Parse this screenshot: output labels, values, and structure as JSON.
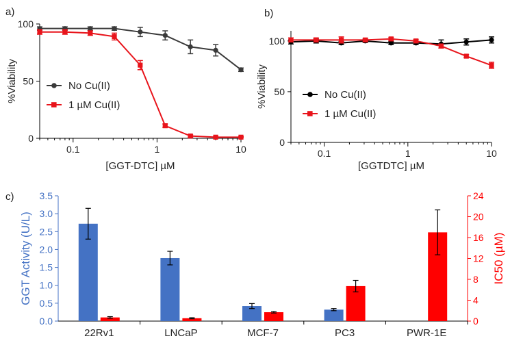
{
  "chart_data": [
    {
      "id": "a",
      "panel_label": "a)",
      "type": "line",
      "xscale": "log",
      "xlabel": "[GGT-DTC] µM",
      "ylabel": "%Viability",
      "xlim": [
        0.04,
        10
      ],
      "ylim": [
        0,
        100
      ],
      "xticks": [
        0.1,
        1,
        10
      ],
      "xtick_labels": [
        "0.1",
        "1",
        "10"
      ],
      "yticks": [
        0,
        50,
        100
      ],
      "ytick_labels": [
        "0",
        "50",
        "100"
      ],
      "legend_position": "left-middle",
      "series": [
        {
          "name": "No Cu(II)",
          "color": "#3a3a3a",
          "marker": "circle",
          "x": [
            0.04,
            0.08,
            0.16,
            0.31,
            0.63,
            1.25,
            2.5,
            5,
            10
          ],
          "y": [
            96,
            96,
            96,
            96,
            93,
            90,
            80,
            77,
            60
          ],
          "err": [
            1.5,
            1.5,
            1.5,
            1.5,
            4,
            4,
            6,
            5,
            1.5
          ]
        },
        {
          "name": "1 µM Cu(II)",
          "color": "#e8141b",
          "marker": "square",
          "x": [
            0.04,
            0.08,
            0.16,
            0.31,
            0.63,
            1.25,
            2.5,
            5,
            10
          ],
          "y": [
            93,
            93,
            92,
            89,
            64,
            11,
            2,
            1,
            1
          ],
          "err": [
            2,
            2,
            2,
            3,
            4,
            1.5,
            1,
            0.5,
            0.5
          ]
        }
      ]
    },
    {
      "id": "b",
      "panel_label": "b)",
      "type": "line",
      "xscale": "log",
      "xlabel": "[GGTDTC] µM",
      "ylabel": "%Viability",
      "xlim": [
        0.04,
        10
      ],
      "ylim": [
        0,
        110
      ],
      "xticks": [
        0.1,
        1,
        10
      ],
      "xtick_labels": [
        "0.1",
        "1",
        "10"
      ],
      "yticks": [
        0,
        50,
        100
      ],
      "ytick_labels": [
        "0",
        "50",
        "100"
      ],
      "legend_position": "lower-left",
      "series": [
        {
          "name": "No Cu(II)",
          "color": "#000000",
          "marker": "circle",
          "x": [
            0.04,
            0.08,
            0.16,
            0.31,
            0.63,
            1.25,
            2.5,
            5,
            10
          ],
          "y": [
            99,
            100,
            98,
            100,
            98,
            98,
            97,
            99,
            101
          ],
          "err": [
            2,
            2,
            1.5,
            1.5,
            1.5,
            1.5,
            4,
            3,
            3
          ]
        },
        {
          "name": "1 µM Cu(II)",
          "color": "#e8141b",
          "marker": "square",
          "x": [
            0.04,
            0.08,
            0.16,
            0.31,
            0.63,
            1.25,
            2.5,
            5,
            10
          ],
          "y": [
            101,
            101,
            101,
            101,
            102,
            100,
            95,
            85,
            76
          ],
          "err": [
            2,
            2,
            3,
            1.5,
            1.5,
            1.5,
            2,
            1.5,
            3
          ]
        }
      ]
    },
    {
      "id": "c",
      "panel_label": "c)",
      "type": "bar",
      "categories": [
        "22Rv1",
        "LNCaP",
        "MCF-7",
        "PC3",
        "PWR-1E"
      ],
      "ylabel": "GGT Activity (U/L)",
      "y2label": "IC50 (µM)",
      "ylim": [
        0,
        3.5
      ],
      "y2lim": [
        0,
        24
      ],
      "yticks": [
        0,
        0.5,
        1,
        1.5,
        2,
        2.5,
        3,
        3.5
      ],
      "ytick_labels": [
        "0.0",
        "0.5",
        "1.0",
        "1.5",
        "2.0",
        "2.5",
        "3.0",
        "3.5"
      ],
      "y2ticks": [
        0,
        4,
        8,
        12,
        16,
        20,
        24
      ],
      "y2tick_labels": [
        "0",
        "4",
        "8",
        "12",
        "16",
        "20",
        "24"
      ],
      "series": [
        {
          "name": "GGT Activity (U/L)",
          "axis": "left",
          "color": "#4472c4",
          "values": [
            2.72,
            1.76,
            0.42,
            0.32,
            0
          ],
          "err": [
            0.43,
            0.19,
            0.07,
            0.03,
            0
          ]
        },
        {
          "name": "IC50 (µM)",
          "axis": "right",
          "color": "#ff0000",
          "values": [
            0.7,
            0.55,
            1.7,
            6.7,
            17
          ],
          "err": [
            0.15,
            0.1,
            0.15,
            1.1,
            4.3
          ]
        }
      ]
    }
  ]
}
